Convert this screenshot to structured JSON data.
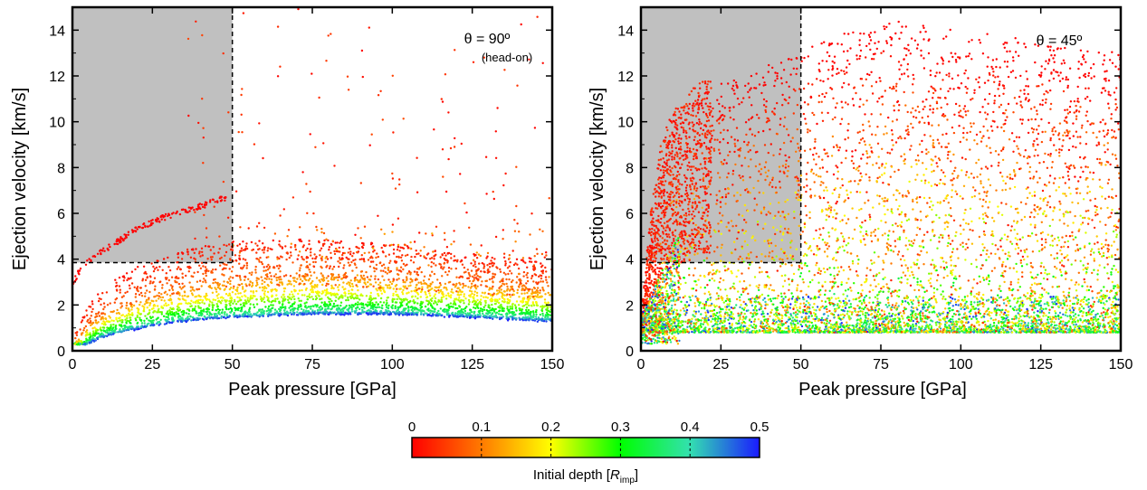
{
  "chart_data": [
    {
      "type": "scatter",
      "panel": "left",
      "annotation": "θ = 90º",
      "annotation_sub": "(head-on)",
      "xlabel": "Peak pressure [GPa]",
      "ylabel": "Ejection velocity [km/s]",
      "xlim": [
        0,
        150
      ],
      "ylim": [
        0,
        15
      ],
      "xticks": [
        0,
        25,
        50,
        75,
        100,
        125,
        150
      ],
      "yticks": [
        0,
        2,
        4,
        6,
        8,
        10,
        12,
        14
      ],
      "shaded_region": {
        "x": [
          0,
          50
        ],
        "y": [
          3.85,
          15
        ],
        "color": "#c0c0c0"
      },
      "dashed_lines": {
        "x": 50,
        "y": 3.85
      },
      "series_shape": [
        {
          "depth": 0.0,
          "points": [
            [
              0,
              2.9
            ],
            [
              3,
              3.7
            ],
            [
              6,
              4.0
            ],
            [
              10,
              4.4
            ],
            [
              20,
              5.3
            ],
            [
              30,
              5.9
            ],
            [
              40,
              6.3
            ],
            [
              48,
              6.7
            ]
          ]
        },
        {
          "depth": 0.02,
          "points": [
            [
              1,
              0.8
            ],
            [
              5,
              2.0
            ],
            [
              10,
              2.8
            ],
            [
              20,
              3.6
            ],
            [
              30,
              4.1
            ],
            [
              40,
              4.5
            ],
            [
              50,
              4.75
            ],
            [
              75,
              4.85
            ],
            [
              100,
              4.6
            ],
            [
              125,
              4.2
            ],
            [
              150,
              3.8
            ]
          ]
        },
        {
          "depth": 0.05,
          "points": [
            [
              1,
              0.6
            ],
            [
              5,
              1.5
            ],
            [
              10,
              2.1
            ],
            [
              20,
              2.8
            ],
            [
              30,
              3.3
            ],
            [
              40,
              3.7
            ],
            [
              50,
              4.0
            ],
            [
              75,
              4.3
            ],
            [
              100,
              4.1
            ],
            [
              125,
              3.7
            ],
            [
              150,
              3.3
            ]
          ]
        },
        {
          "depth": 0.1,
          "points": [
            [
              1,
              0.4
            ],
            [
              5,
              1.1
            ],
            [
              10,
              1.6
            ],
            [
              20,
              2.2
            ],
            [
              30,
              2.6
            ],
            [
              40,
              2.9
            ],
            [
              50,
              3.1
            ],
            [
              75,
              3.35
            ],
            [
              100,
              3.2
            ],
            [
              125,
              2.95
            ],
            [
              150,
              2.65
            ]
          ]
        },
        {
          "depth": 0.2,
          "points": [
            [
              2,
              0.3
            ],
            [
              5,
              0.8
            ],
            [
              10,
              1.2
            ],
            [
              20,
              1.7
            ],
            [
              30,
              2.0
            ],
            [
              40,
              2.2
            ],
            [
              50,
              2.35
            ],
            [
              75,
              2.55
            ],
            [
              100,
              2.5
            ],
            [
              125,
              2.3
            ],
            [
              150,
              2.05
            ]
          ]
        },
        {
          "depth": 0.3,
          "points": [
            [
              3,
              0.3
            ],
            [
              5,
              0.55
            ],
            [
              10,
              0.9
            ],
            [
              20,
              1.3
            ],
            [
              30,
              1.55
            ],
            [
              40,
              1.75
            ],
            [
              50,
              1.85
            ],
            [
              75,
              2.05
            ],
            [
              100,
              2.0
            ],
            [
              125,
              1.85
            ],
            [
              150,
              1.65
            ]
          ]
        },
        {
          "depth": 0.4,
          "points": [
            [
              4,
              0.3
            ],
            [
              6,
              0.45
            ],
            [
              10,
              0.7
            ],
            [
              20,
              1.05
            ],
            [
              30,
              1.3
            ],
            [
              40,
              1.45
            ],
            [
              50,
              1.55
            ],
            [
              75,
              1.7
            ],
            [
              100,
              1.7
            ],
            [
              125,
              1.55
            ],
            [
              150,
              1.4
            ]
          ]
        },
        {
          "depth": 0.5,
          "points": [
            [
              5,
              0.3
            ],
            [
              8,
              0.5
            ],
            [
              12,
              0.7
            ],
            [
              20,
              0.95
            ],
            [
              30,
              1.2
            ],
            [
              40,
              1.35
            ],
            [
              50,
              1.45
            ],
            [
              75,
              1.6
            ],
            [
              100,
              1.6
            ],
            [
              125,
              1.45
            ],
            [
              150,
              1.25
            ]
          ]
        }
      ]
    },
    {
      "type": "scatter",
      "panel": "right",
      "annotation": "θ = 45º",
      "xlabel": "Peak pressure [GPa]",
      "ylabel": "Ejection velocity [km/s]",
      "xlim": [
        0,
        150
      ],
      "ylim": [
        0,
        15
      ],
      "xticks": [
        0,
        25,
        50,
        75,
        100,
        125,
        150
      ],
      "yticks": [
        0,
        2,
        4,
        6,
        8,
        10,
        12,
        14
      ],
      "shaded_region": {
        "x": [
          0,
          50
        ],
        "y": [
          3.85,
          15
        ],
        "color": "#c0c0c0"
      },
      "dashed_lines": {
        "x": 50,
        "y": 3.85
      },
      "distribution": {
        "depth_range": [
          0,
          0.5
        ],
        "velocity_floor": 0.8,
        "description_points": [
          [
            0,
            1.5
          ],
          [
            5,
            6.0
          ],
          [
            10,
            10.5
          ],
          [
            20,
            11.5
          ],
          [
            40,
            12.5
          ],
          [
            75,
            14.5
          ],
          [
            150,
            13.0
          ]
        ]
      }
    }
  ],
  "colorbar": {
    "label_main": "Initial depth [",
    "label_var": "R",
    "label_sub": "imp",
    "label_end": "]",
    "ticks": [
      "0",
      "0.1",
      "0.2",
      "0.3",
      "0.4",
      "0.5"
    ],
    "colors": [
      "#ff0000",
      "#ff7a00",
      "#ffff00",
      "#00ff00",
      "#33e0b0",
      "#1a1aff"
    ]
  }
}
